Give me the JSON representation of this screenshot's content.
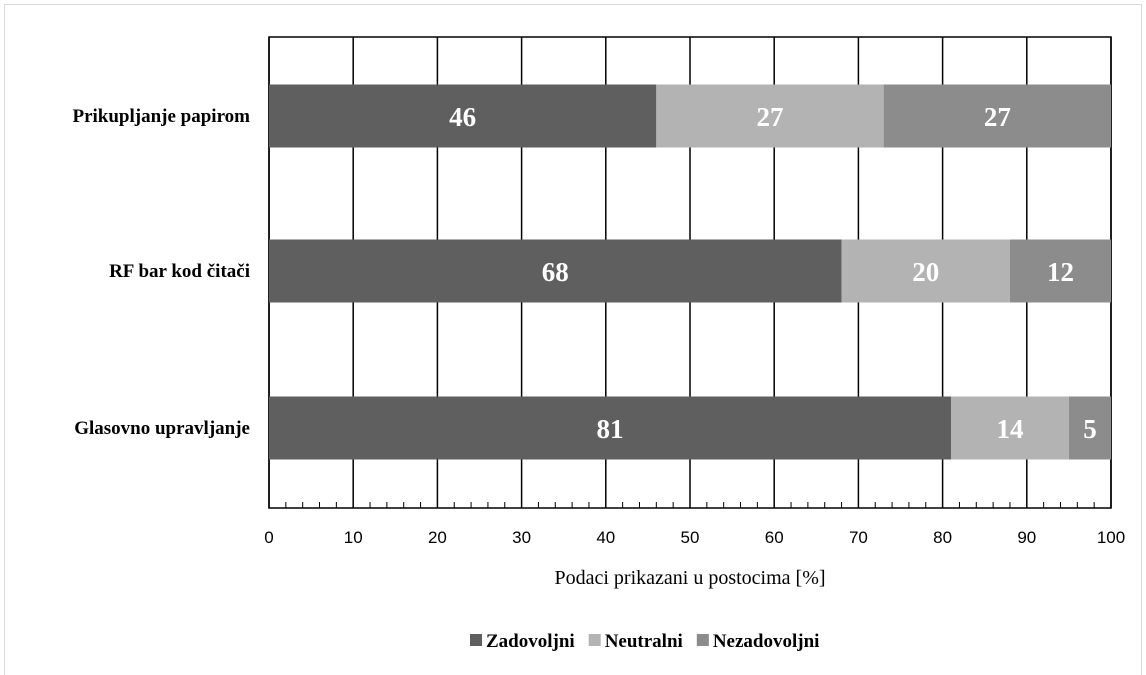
{
  "chart_data": {
    "type": "bar",
    "orientation": "horizontal",
    "stacked": true,
    "title": "",
    "xlabel": "Podaci prikazani u postocima [%]",
    "ylabel": "",
    "xlim": [
      0,
      100
    ],
    "x_ticks": [
      0,
      10,
      20,
      30,
      40,
      50,
      60,
      70,
      80,
      90,
      100
    ],
    "grid": "vertical",
    "legend_position": "bottom",
    "categories": [
      "Prikupljanje papirom",
      "RF bar kod čitači",
      "Glasovno upravljanje"
    ],
    "series": [
      {
        "name": "Zadovoljni",
        "color": "#5f5f5f",
        "values": [
          46,
          68,
          81
        ]
      },
      {
        "name": "Neutralni",
        "color": "#b3b3b3",
        "values": [
          27,
          20,
          14
        ]
      },
      {
        "name": "Nezadovoljni",
        "color": "#8c8c8c",
        "values": [
          27,
          12,
          5
        ]
      }
    ]
  }
}
